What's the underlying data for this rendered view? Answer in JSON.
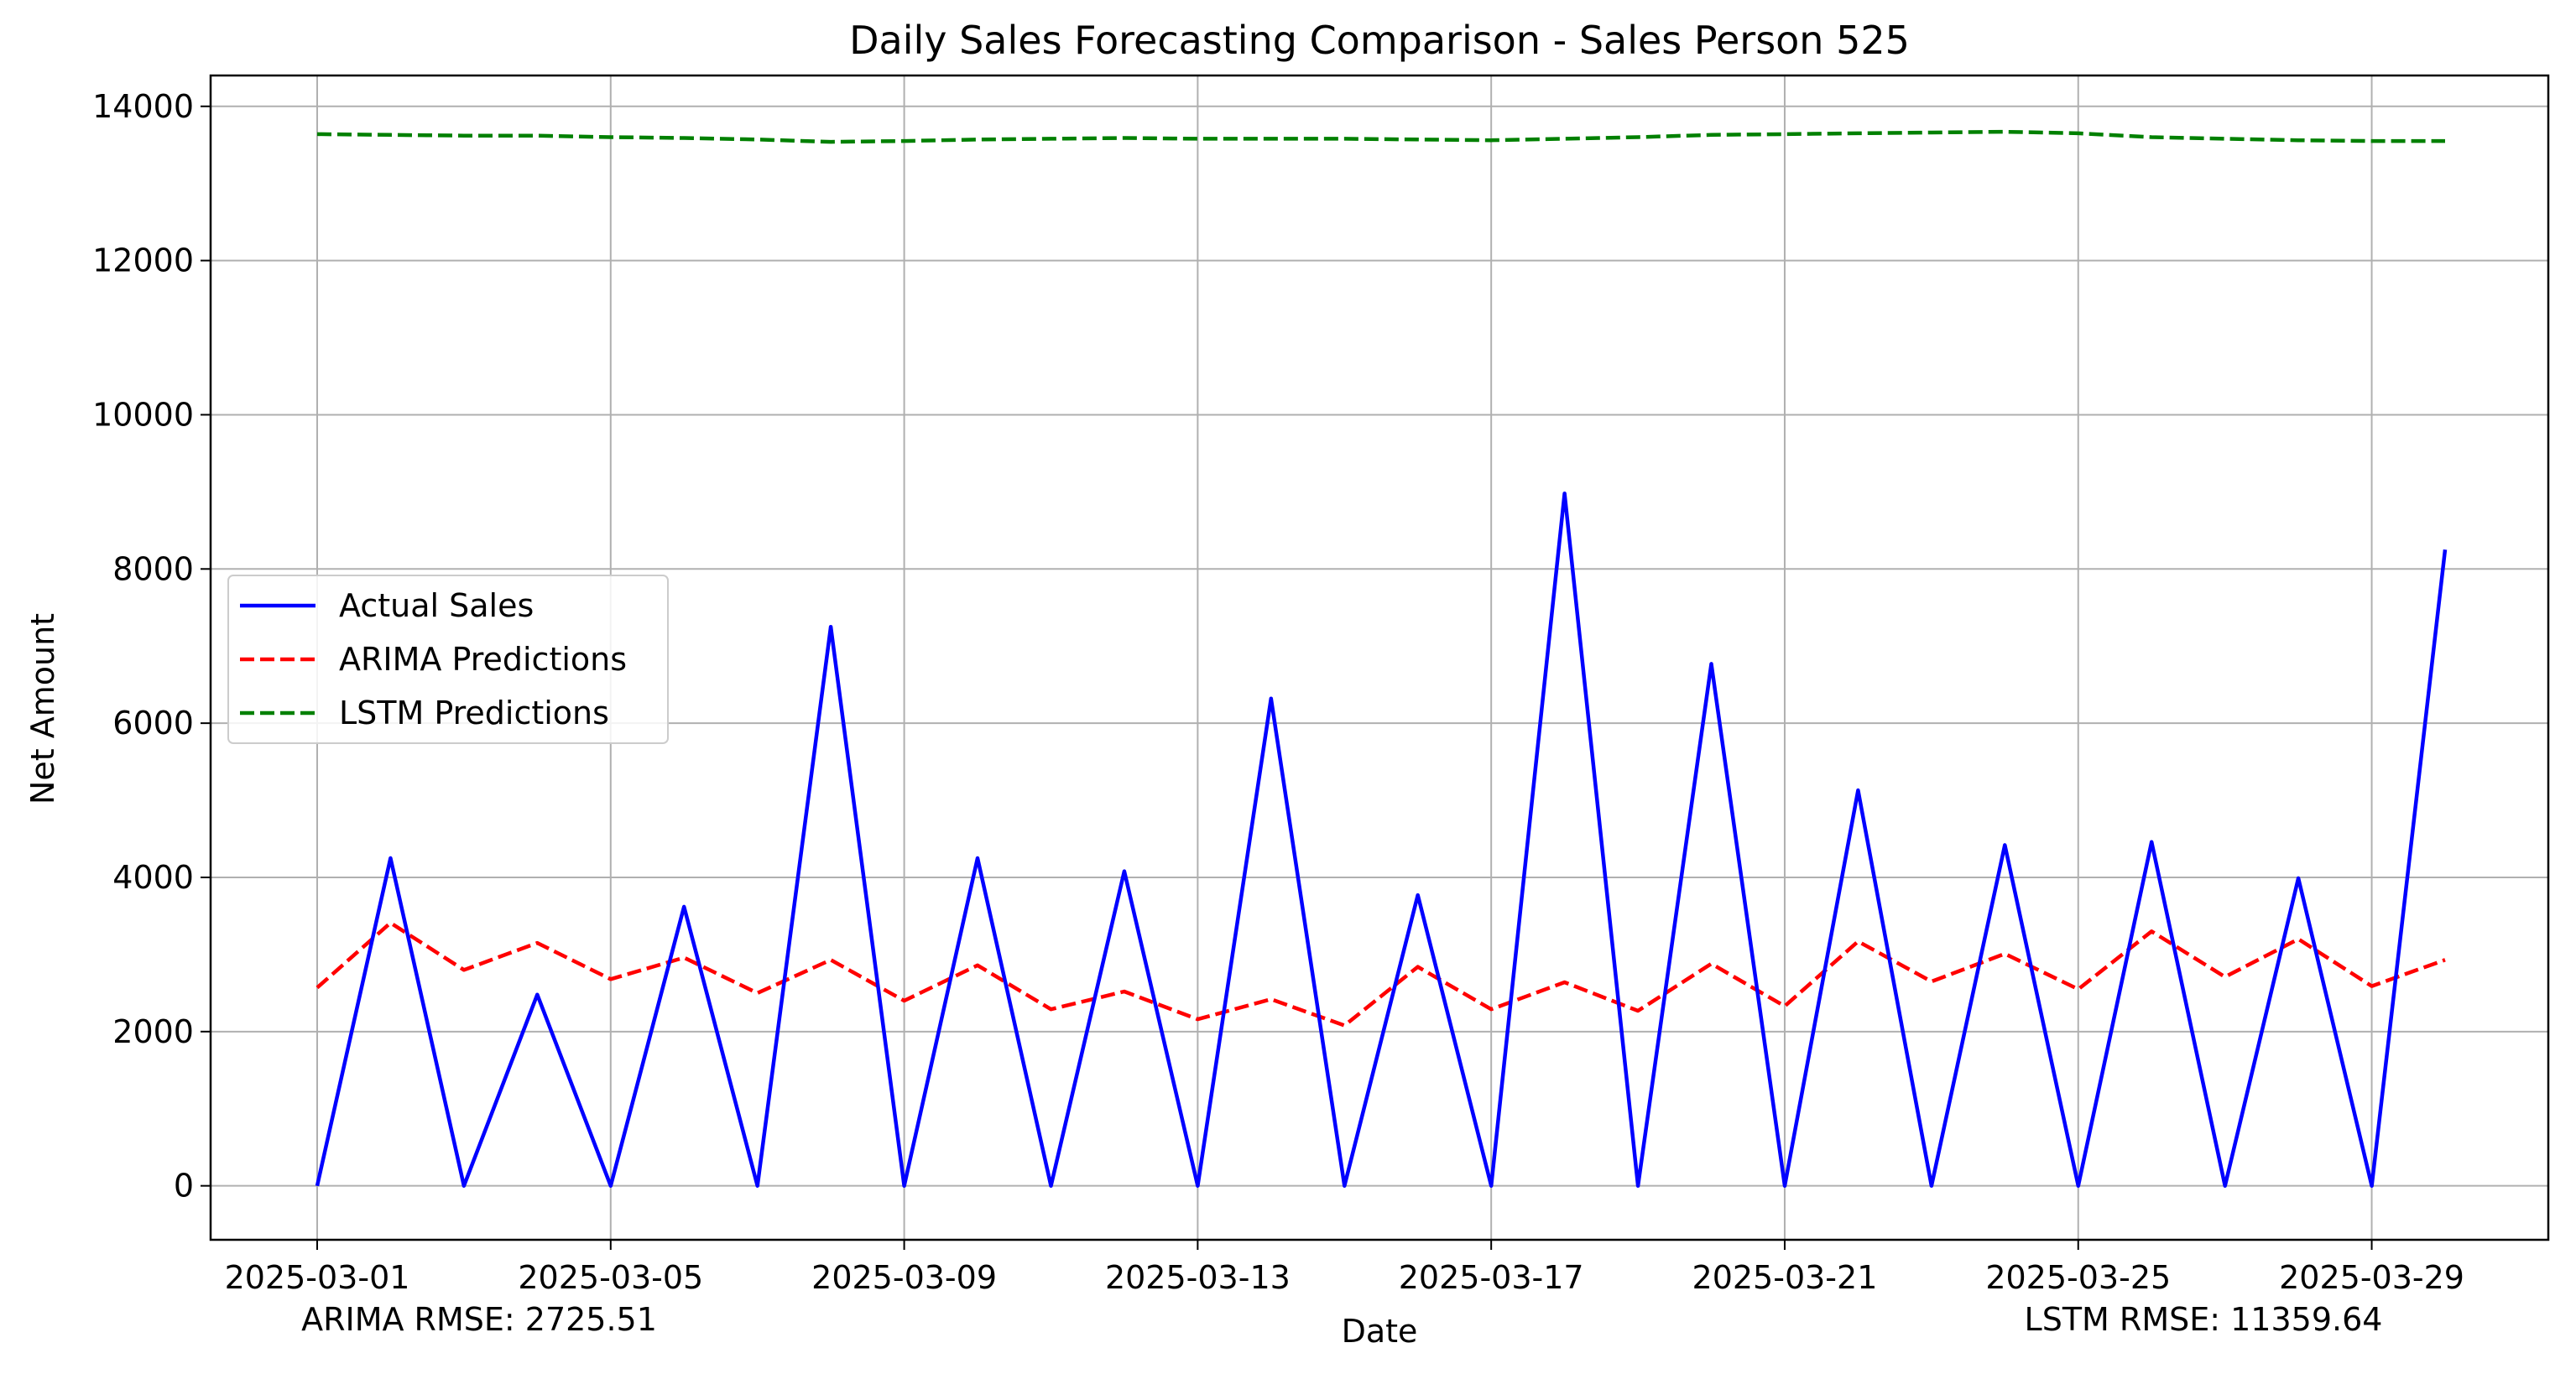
{
  "chart_data": {
    "type": "line",
    "title": "Daily Sales Forecasting Comparison - Sales Person 525",
    "xlabel": "Date",
    "ylabel": "Net Amount",
    "x": [
      "2025-03-01",
      "2025-03-02",
      "2025-03-03",
      "2025-03-04",
      "2025-03-05",
      "2025-03-06",
      "2025-03-07",
      "2025-03-08",
      "2025-03-09",
      "2025-03-10",
      "2025-03-11",
      "2025-03-12",
      "2025-03-13",
      "2025-03-14",
      "2025-03-15",
      "2025-03-16",
      "2025-03-17",
      "2025-03-18",
      "2025-03-19",
      "2025-03-20",
      "2025-03-21",
      "2025-03-22",
      "2025-03-23",
      "2025-03-24",
      "2025-03-25",
      "2025-03-26",
      "2025-03-27",
      "2025-03-28",
      "2025-03-29",
      "2025-03-30"
    ],
    "x_ticks": [
      "2025-03-01",
      "2025-03-05",
      "2025-03-09",
      "2025-03-13",
      "2025-03-17",
      "2025-03-21",
      "2025-03-25",
      "2025-03-29"
    ],
    "ylim": [
      -700,
      14400
    ],
    "y_ticks": [
      0,
      2000,
      4000,
      6000,
      8000,
      10000,
      12000,
      14000
    ],
    "grid": true,
    "legend_position": "center-left",
    "series": [
      {
        "name": "Actual Sales",
        "color": "#0000ff",
        "style": "solid",
        "values": [
          0,
          4250,
          0,
          2480,
          0,
          3620,
          0,
          7250,
          0,
          4250,
          0,
          4080,
          0,
          6320,
          0,
          3770,
          0,
          8980,
          0,
          6770,
          0,
          5130,
          0,
          4420,
          0,
          4460,
          0,
          3990,
          0,
          8250
        ]
      },
      {
        "name": "ARIMA Predictions",
        "color": "#ff0000",
        "style": "dashed",
        "values": [
          2570,
          3410,
          2800,
          3150,
          2680,
          2960,
          2500,
          2930,
          2400,
          2860,
          2290,
          2520,
          2160,
          2420,
          2080,
          2840,
          2290,
          2640,
          2270,
          2880,
          2330,
          3170,
          2650,
          3010,
          2550,
          3300,
          2710,
          3200,
          2590,
          2930
        ]
      },
      {
        "name": "LSTM Predictions",
        "color": "#008000",
        "style": "dashed",
        "values": [
          13640,
          13630,
          13620,
          13620,
          13600,
          13590,
          13570,
          13540,
          13550,
          13570,
          13580,
          13590,
          13580,
          13580,
          13580,
          13570,
          13560,
          13580,
          13600,
          13630,
          13640,
          13650,
          13660,
          13670,
          13650,
          13600,
          13580,
          13560,
          13550,
          13550
        ]
      }
    ],
    "annotations": {
      "arima_rmse": "ARIMA RMSE: 2725.51",
      "lstm_rmse": "LSTM RMSE: 11359.64"
    }
  }
}
